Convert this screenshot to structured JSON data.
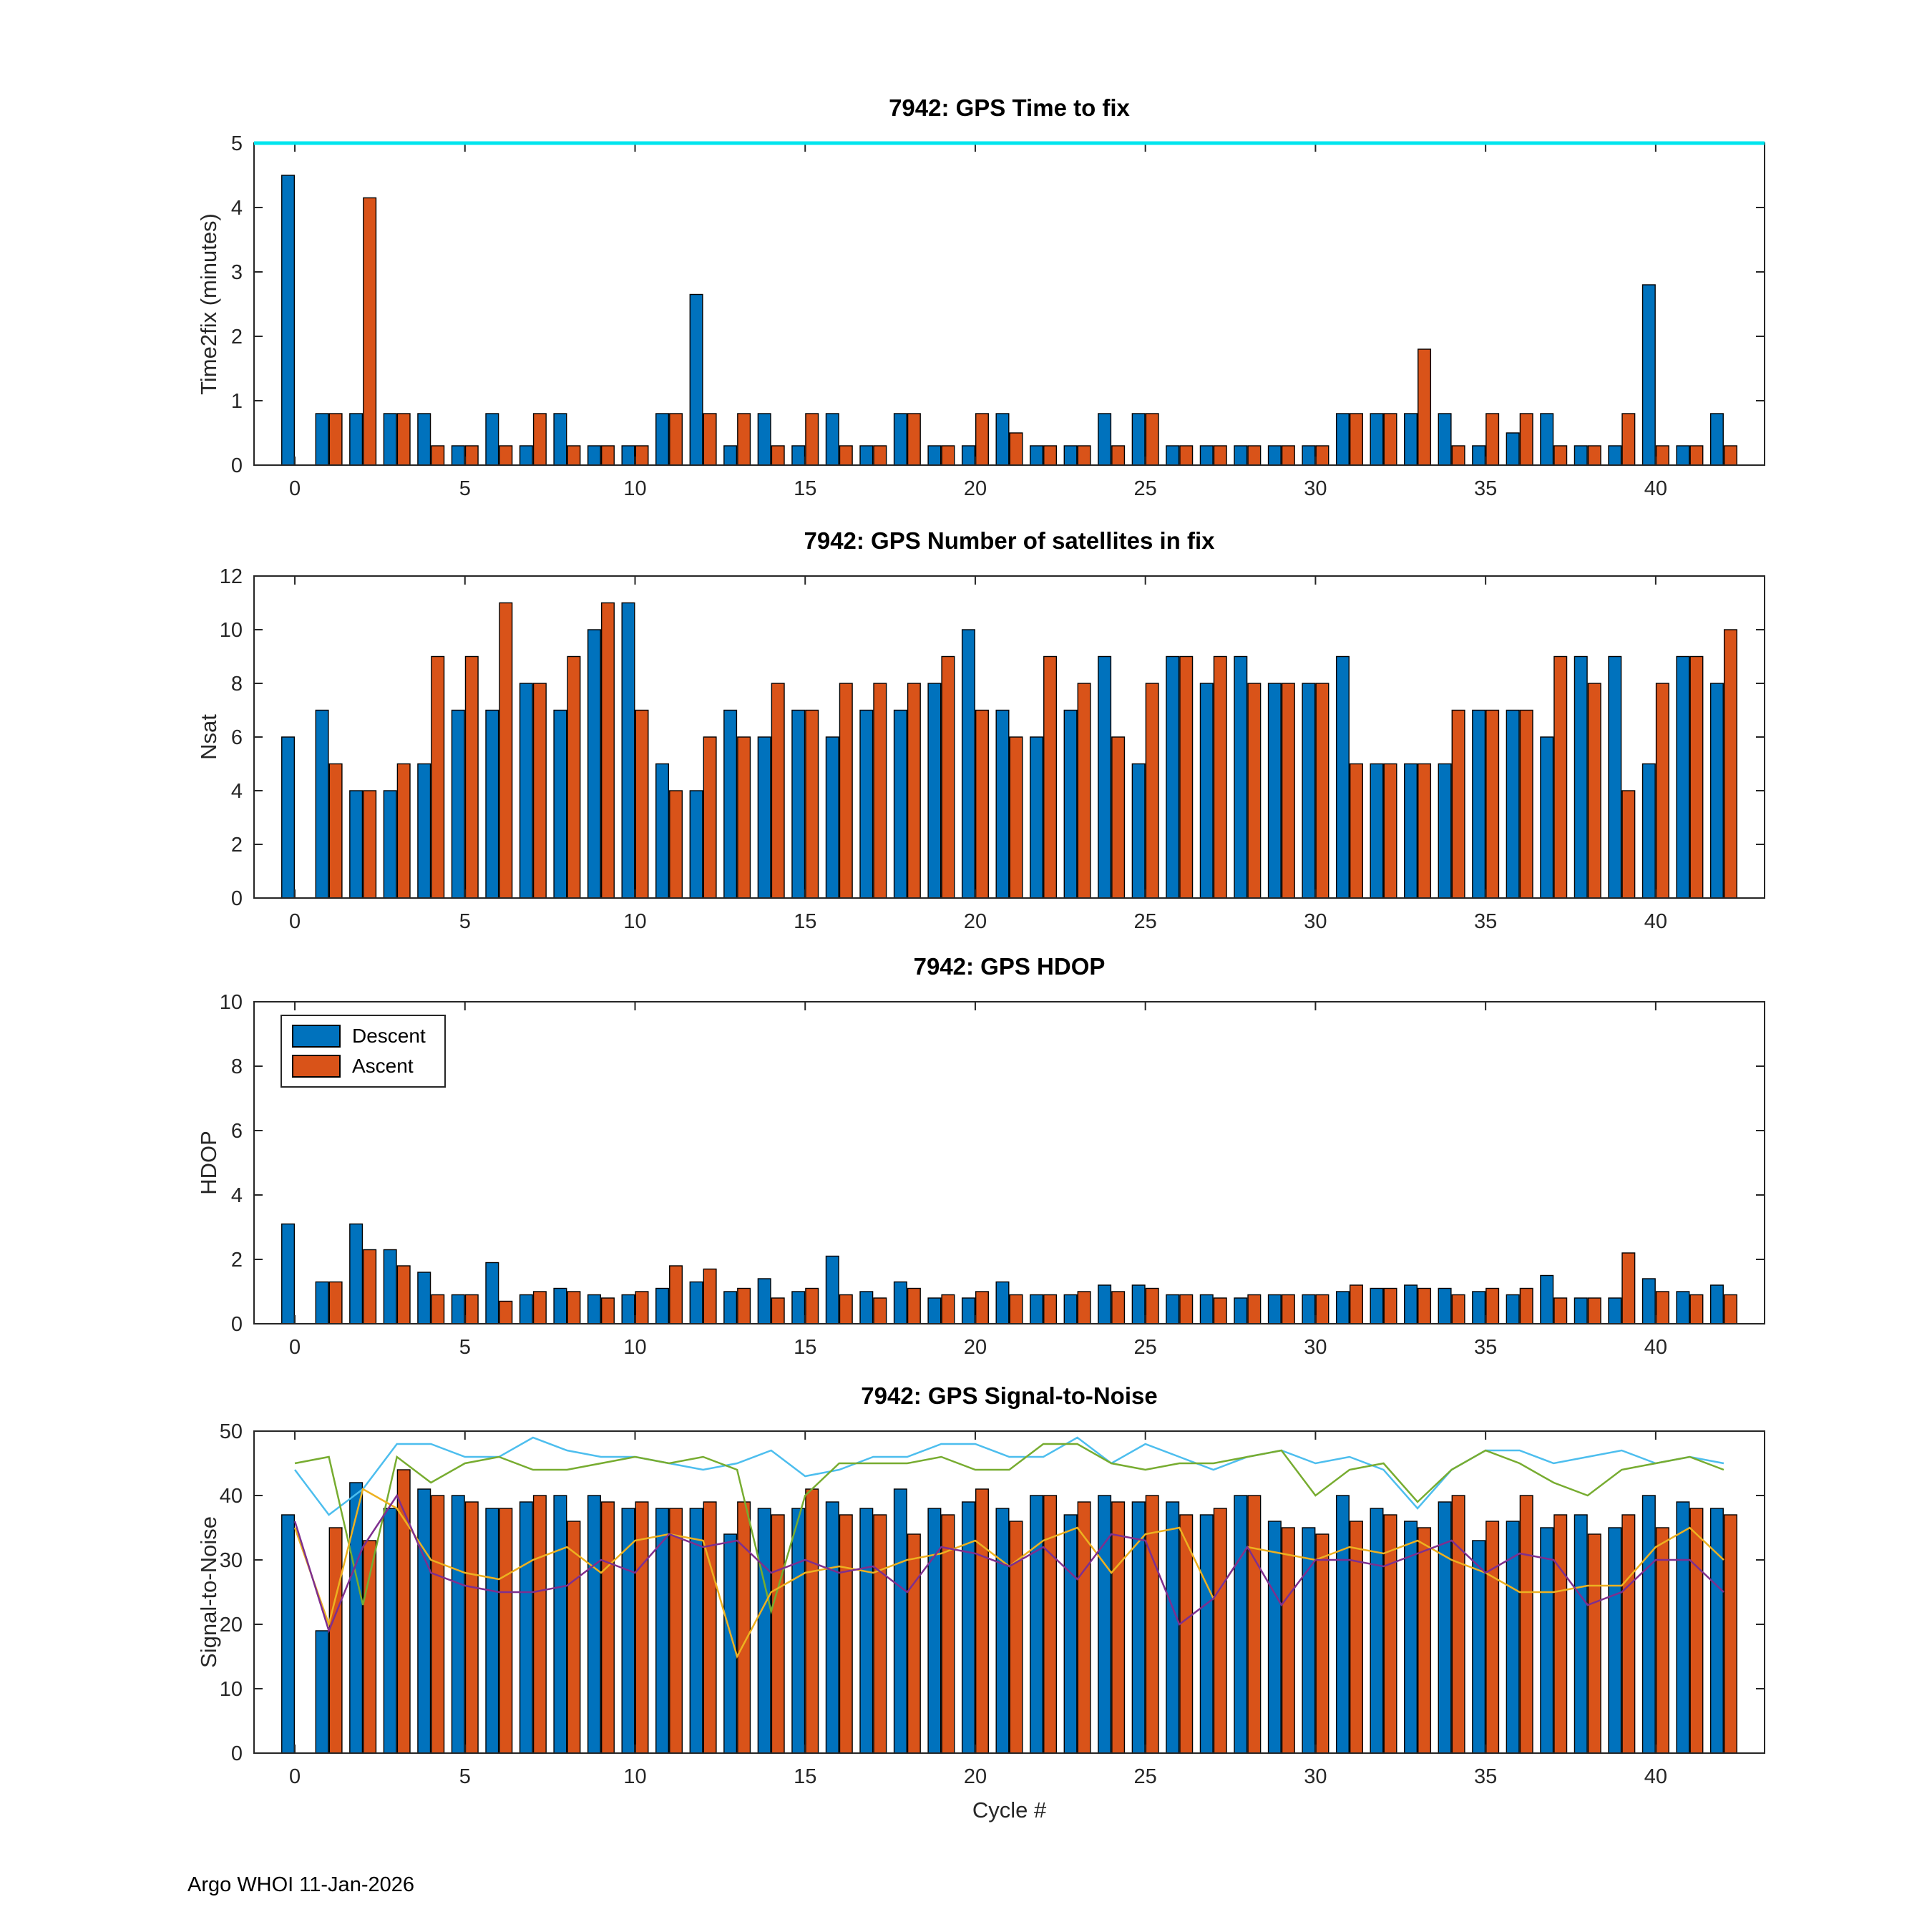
{
  "figure": {
    "footer": "Argo WHOI 11-Jan-2026",
    "xlabel": "Cycle #"
  },
  "colors": {
    "descent": "#0072BD",
    "ascent": "#D95319",
    "axis": "#262626",
    "topline": "#00E5EE",
    "line_cyan": "#4DBEEE",
    "line_green": "#77AC30",
    "line_yellow": "#EDB120",
    "line_purple": "#7E2F8E"
  },
  "cycle_numbers": [
    0,
    1,
    2,
    3,
    4,
    5,
    6,
    7,
    8,
    9,
    10,
    11,
    12,
    13,
    14,
    15,
    16,
    17,
    18,
    19,
    20,
    21,
    22,
    23,
    24,
    25,
    26,
    27,
    28,
    29,
    30,
    31,
    32,
    33,
    34,
    35,
    36,
    37,
    38,
    39,
    40,
    41,
    42
  ],
  "chart_data": [
    {
      "type": "bar",
      "title": "7942: GPS Time to fix",
      "xlabel": "",
      "ylabel": "Time2fix (minutes)",
      "xlim": [
        -1.2,
        43.2
      ],
      "ylim": [
        0,
        5
      ],
      "xticks": [
        0,
        5,
        10,
        15,
        20,
        25,
        30,
        35,
        40
      ],
      "yticks": [
        0,
        1,
        2,
        3,
        4,
        5
      ],
      "grid": false,
      "legend_position": "none",
      "series": [
        {
          "name": "Descent",
          "color_key": "descent",
          "values": [
            4.5,
            0.8,
            0.8,
            0.8,
            0.8,
            0.3,
            0.8,
            0.3,
            0.8,
            0.3,
            0.3,
            0.8,
            2.65,
            0.3,
            0.8,
            0.3,
            0.8,
            0.3,
            0.8,
            0.3,
            0.3,
            0.8,
            0.3,
            0.3,
            0.8,
            0.8,
            0.3,
            0.3,
            0.3,
            0.3,
            0.3,
            0.8,
            0.8,
            0.8,
            0.8,
            0.3,
            0.5,
            0.8,
            0.3,
            0.3,
            2.8,
            0.3,
            0.8
          ]
        },
        {
          "name": "Ascent",
          "color_key": "ascent",
          "values": [
            null,
            0.8,
            4.15,
            0.8,
            0.3,
            0.3,
            0.3,
            0.8,
            0.3,
            0.3,
            0.3,
            0.8,
            0.8,
            0.8,
            0.3,
            0.8,
            0.3,
            0.3,
            0.8,
            0.3,
            0.8,
            0.5,
            0.3,
            0.3,
            0.3,
            0.8,
            0.3,
            0.3,
            0.3,
            0.3,
            0.3,
            0.8,
            0.8,
            1.8,
            0.3,
            0.8,
            0.8,
            0.3,
            0.3,
            0.8,
            0.3,
            0.3,
            0.3
          ]
        }
      ],
      "hlines": [
        {
          "y": 5,
          "color_key": "topline"
        }
      ]
    },
    {
      "type": "bar",
      "title": "7942: GPS Number of satellites in fix",
      "xlabel": "",
      "ylabel": "Nsat",
      "xlim": [
        -1.2,
        43.2
      ],
      "ylim": [
        0,
        12
      ],
      "xticks": [
        0,
        5,
        10,
        15,
        20,
        25,
        30,
        35,
        40
      ],
      "yticks": [
        0,
        2,
        4,
        6,
        8,
        10,
        12
      ],
      "grid": false,
      "legend_position": "none",
      "series": [
        {
          "name": "Descent",
          "color_key": "descent",
          "values": [
            6,
            7,
            4,
            4,
            5,
            7,
            7,
            8,
            7,
            10,
            11,
            5,
            4,
            7,
            6,
            7,
            6,
            7,
            7,
            8,
            10,
            7,
            6,
            7,
            9,
            5,
            9,
            8,
            9,
            8,
            8,
            9,
            5,
            5,
            5,
            7,
            7,
            6,
            9,
            9,
            5,
            9,
            8
          ]
        },
        {
          "name": "Ascent",
          "color_key": "ascent",
          "values": [
            null,
            5,
            4,
            5,
            9,
            9,
            11,
            8,
            9,
            11,
            7,
            4,
            6,
            6,
            8,
            7,
            8,
            8,
            8,
            9,
            7,
            6,
            9,
            8,
            6,
            8,
            9,
            9,
            8,
            8,
            8,
            5,
            5,
            5,
            7,
            7,
            7,
            9,
            8,
            4,
            8,
            9,
            10
          ]
        }
      ],
      "hlines": []
    },
    {
      "type": "bar",
      "title": "7942: GPS HDOP",
      "xlabel": "",
      "ylabel": "HDOP",
      "xlim": [
        -1.2,
        43.2
      ],
      "ylim": [
        0,
        10
      ],
      "xticks": [
        0,
        5,
        10,
        15,
        20,
        25,
        30,
        35,
        40
      ],
      "yticks": [
        0,
        2,
        4,
        6,
        8,
        10
      ],
      "grid": false,
      "legend_position": "northwest",
      "series": [
        {
          "name": "Descent",
          "color_key": "descent",
          "values": [
            3.1,
            1.3,
            3.1,
            2.3,
            1.6,
            0.9,
            1.9,
            0.9,
            1.1,
            0.9,
            0.9,
            1.1,
            1.3,
            1.0,
            1.4,
            1.0,
            2.1,
            1.0,
            1.3,
            0.8,
            0.8,
            1.3,
            0.9,
            0.9,
            1.2,
            1.2,
            0.9,
            0.9,
            0.8,
            0.9,
            0.9,
            1.0,
            1.1,
            1.2,
            1.1,
            1.0,
            0.9,
            1.5,
            0.8,
            0.8,
            1.4,
            1.0,
            1.2
          ]
        },
        {
          "name": "Ascent",
          "color_key": "ascent",
          "values": [
            null,
            1.3,
            2.3,
            1.8,
            0.9,
            0.9,
            0.7,
            1.0,
            1.0,
            0.8,
            1.0,
            1.8,
            1.7,
            1.1,
            0.8,
            1.1,
            0.9,
            0.8,
            1.1,
            0.9,
            1.0,
            0.9,
            0.9,
            1.0,
            1.0,
            1.1,
            0.9,
            0.8,
            0.9,
            0.9,
            0.9,
            1.2,
            1.1,
            1.1,
            0.9,
            1.1,
            1.1,
            0.8,
            0.8,
            2.2,
            1.0,
            0.9,
            0.9
          ]
        }
      ],
      "hlines": []
    },
    {
      "type": "bar",
      "title": "7942: GPS Signal-to-Noise",
      "xlabel": "Cycle #",
      "ylabel": "Signal-to-Noise",
      "xlim": [
        -1.2,
        43.2
      ],
      "ylim": [
        0,
        50
      ],
      "xticks": [
        0,
        5,
        10,
        15,
        20,
        25,
        30,
        35,
        40
      ],
      "yticks": [
        0,
        10,
        20,
        30,
        40,
        50
      ],
      "grid": false,
      "legend_position": "none",
      "series": [
        {
          "name": "Descent",
          "color_key": "descent",
          "values": [
            37,
            19,
            42,
            38,
            41,
            40,
            38,
            39,
            40,
            40,
            38,
            38,
            38,
            34,
            38,
            38,
            39,
            38,
            41,
            38,
            39,
            38,
            40,
            37,
            40,
            39,
            39,
            37,
            40,
            36,
            35,
            40,
            38,
            36,
            39,
            33,
            36,
            35,
            37,
            35,
            40,
            39,
            38
          ]
        },
        {
          "name": "Ascent",
          "color_key": "ascent",
          "values": [
            null,
            35,
            33,
            44,
            40,
            39,
            38,
            40,
            36,
            39,
            39,
            38,
            39,
            39,
            37,
            41,
            37,
            37,
            34,
            37,
            41,
            36,
            40,
            39,
            39,
            40,
            37,
            38,
            40,
            35,
            34,
            36,
            37,
            35,
            40,
            36,
            40,
            37,
            34,
            37,
            35,
            38,
            37
          ]
        }
      ],
      "lines": [
        {
          "name": "snr-max-line",
          "color_key": "line_cyan",
          "values": [
            44,
            37,
            41,
            48,
            48,
            46,
            46,
            49,
            47,
            46,
            46,
            45,
            44,
            45,
            47,
            43,
            44,
            46,
            46,
            48,
            48,
            46,
            46,
            49,
            45,
            48,
            46,
            44,
            46,
            47,
            45,
            46,
            44,
            38,
            44,
            47,
            47,
            45,
            46,
            47,
            45,
            46,
            45
          ]
        },
        {
          "name": "snr-high-line",
          "color_key": "line_green",
          "values": [
            45,
            46,
            23,
            46,
            42,
            45,
            46,
            44,
            44,
            45,
            46,
            45,
            46,
            44,
            22,
            40,
            45,
            45,
            45,
            46,
            44,
            44,
            48,
            48,
            45,
            44,
            45,
            45,
            46,
            47,
            40,
            44,
            45,
            39,
            44,
            47,
            45,
            42,
            40,
            44,
            45,
            46,
            44
          ]
        },
        {
          "name": "snr-mean-line",
          "color_key": "line_yellow",
          "values": [
            35,
            20,
            41,
            38,
            30,
            28,
            27,
            30,
            32,
            28,
            33,
            34,
            33,
            15,
            25,
            28,
            29,
            28,
            30,
            31,
            33,
            29,
            33,
            35,
            28,
            34,
            35,
            24,
            32,
            31,
            30,
            32,
            31,
            33,
            30,
            28,
            25,
            25,
            26,
            26,
            32,
            35,
            30
          ]
        },
        {
          "name": "snr-low-line",
          "color_key": "line_purple",
          "values": [
            36,
            19,
            32,
            40,
            28,
            26,
            25,
            25,
            26,
            30,
            28,
            34,
            32,
            33,
            28,
            30,
            28,
            29,
            25,
            32,
            31,
            29,
            32,
            27,
            34,
            33,
            20,
            24,
            32,
            23,
            30,
            30,
            29,
            31,
            33,
            28,
            31,
            30,
            23,
            25,
            30,
            30,
            25
          ]
        }
      ],
      "hlines": []
    }
  ]
}
